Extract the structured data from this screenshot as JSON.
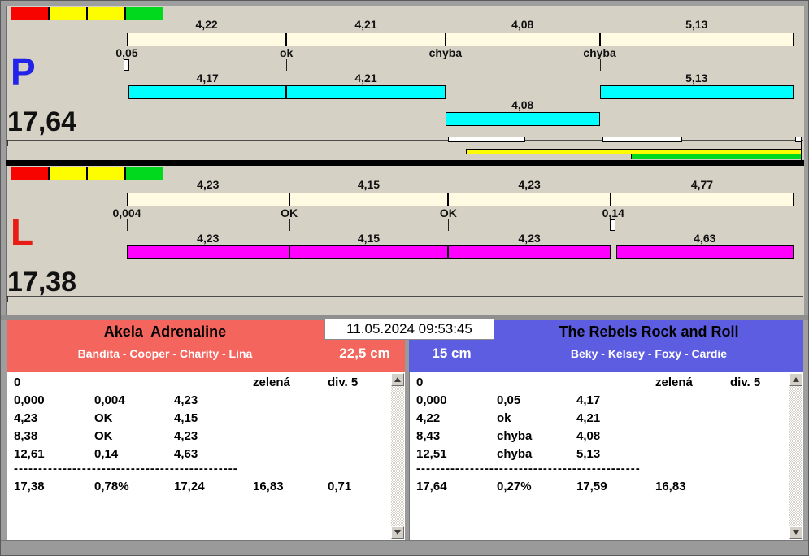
{
  "colors": {
    "chart_bg": "#d5d1c5",
    "reference_bar": "#fffbe2",
    "divider": "#000000",
    "left_accent": "#f4655e",
    "right_accent": "#5d5de2"
  },
  "lanes": [
    {
      "id": "P",
      "letter": "P",
      "letter_color": "#2222e8",
      "total_label": "17,64",
      "total_seconds": 17.64,
      "status_boxes": [
        "#f80400",
        "#fdfd00",
        "#fdfd00",
        "#00d91e"
      ],
      "ref_segments": [
        {
          "label": "4,22",
          "seconds": 4.22
        },
        {
          "label": "4,21",
          "seconds": 4.21
        },
        {
          "label": "4,08",
          "seconds": 4.08
        },
        {
          "label": "5,13",
          "seconds": 5.13
        }
      ],
      "ticks": [
        {
          "t": 0,
          "label": "0,05",
          "style": "box"
        },
        {
          "t": 4.22,
          "label": "ok",
          "style": "line"
        },
        {
          "t": 8.43,
          "label": "chyba",
          "style": "line"
        },
        {
          "t": 12.51,
          "label": "chyba",
          "style": "line"
        }
      ],
      "run_color": "#00ffff",
      "run_segments": [
        {
          "start": 0.05,
          "end": 4.22,
          "label": "4,17",
          "row": 0
        },
        {
          "start": 4.22,
          "end": 8.43,
          "label": "4,21",
          "row": 0
        },
        {
          "start": 8.43,
          "end": 12.51,
          "label": "4,08",
          "row": 1
        },
        {
          "start": 12.51,
          "end": 17.64,
          "label": "5,13",
          "row": 0
        }
      ],
      "thin_bars": [
        {
          "color": "#ffffff",
          "from": 0.482,
          "to": 0.597,
          "row": "base"
        },
        {
          "color": "#ffffff",
          "from": 0.713,
          "to": 0.833,
          "row": "base"
        },
        {
          "color": "#ffffff",
          "from": 1.002,
          "to": 1.012,
          "row": "base"
        },
        {
          "color": "#fdfd00",
          "from": 0.509,
          "to": 1.012,
          "row": "yellow"
        },
        {
          "color": "#00d91e",
          "from": 0.756,
          "to": 1.012,
          "row": "green"
        }
      ],
      "end_line": true
    },
    {
      "id": "L",
      "letter": "L",
      "letter_color": "#e81c14",
      "total_label": "17,38",
      "total_seconds": 17.38,
      "status_boxes": [
        "#f80400",
        "#fdfd00",
        "#fdfd00",
        "#00d91e"
      ],
      "ref_segments": [
        {
          "label": "4,23",
          "seconds": 4.23
        },
        {
          "label": "4,15",
          "seconds": 4.15
        },
        {
          "label": "4,23",
          "seconds": 4.23
        },
        {
          "label": "4,77",
          "seconds": 4.77
        }
      ],
      "ticks": [
        {
          "t": 0,
          "label": "0,004",
          "style": "line"
        },
        {
          "t": 4.23,
          "label": "OK",
          "style": "line"
        },
        {
          "t": 8.38,
          "label": "OK",
          "style": "line"
        },
        {
          "t": 12.68,
          "label": "0,14",
          "style": "box"
        }
      ],
      "run_color": "#ff00ff",
      "run_segments": [
        {
          "start": 0,
          "end": 4.23,
          "label": "4,23",
          "row": 0
        },
        {
          "start": 4.23,
          "end": 8.38,
          "label": "4,15",
          "row": 0
        },
        {
          "start": 8.38,
          "end": 12.61,
          "label": "4,23",
          "row": 0
        },
        {
          "start": 12.75,
          "end": 17.38,
          "label": "4,63",
          "row": 0
        }
      ],
      "thin_bars": [],
      "end_line": false
    }
  ],
  "footer": {
    "datetime": "11.05.2024 09:53:45",
    "left_team": {
      "name": "Akela  Adrenaline",
      "dogs": "Bandita - Cooper - Charity - Lina",
      "jump_height": "22,5 cm",
      "accent": "#f4655e",
      "table": {
        "rows": [
          [
            "0",
            "",
            "",
            "zelená",
            "div. 5"
          ],
          [
            "0,000",
            "0,004",
            "4,23",
            "",
            ""
          ],
          [
            "4,23",
            "OK",
            "4,15",
            "",
            ""
          ],
          [
            "8,38",
            "OK",
            "4,23",
            "",
            ""
          ],
          [
            "12,61",
            "0,14",
            "4,63",
            "",
            ""
          ]
        ],
        "separator": "----------------------------------------------",
        "totals": [
          "17,38",
          "0,78%",
          "17,24",
          "16,83",
          "0,71"
        ]
      }
    },
    "right_team": {
      "name": "The Rebels Rock and Roll",
      "dogs": "Beky - Kelsey - Foxy - Cardie",
      "jump_height": "15 cm",
      "accent": "#5d5de2",
      "table": {
        "rows": [
          [
            "0",
            "",
            "",
            "zelená",
            "div. 5"
          ],
          [
            "0,000",
            "0,05",
            "4,17",
            "",
            ""
          ],
          [
            "4,22",
            "ok",
            "4,21",
            "",
            ""
          ],
          [
            "8,43",
            "chyba",
            "4,08",
            "",
            ""
          ],
          [
            "12,51",
            "chyba",
            "5,13",
            "",
            ""
          ]
        ],
        "separator": "----------------------------------------------",
        "totals": [
          "17,64",
          "0,27%",
          "17,59",
          "16,83",
          ""
        ]
      }
    }
  }
}
